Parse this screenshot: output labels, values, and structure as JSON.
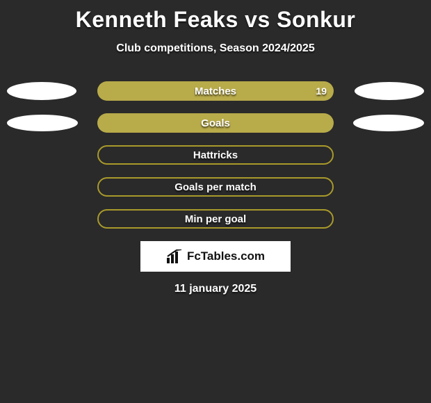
{
  "background_color": "#2a2a2a",
  "title": {
    "text": "Kenneth Feaks vs Sonkur",
    "color": "#ffffff",
    "fontsize": 32,
    "fontweight": 900
  },
  "subtitle": {
    "text": "Club competitions, Season 2024/2025",
    "color": "#ffffff",
    "fontsize": 16,
    "fontweight": 700
  },
  "pill_color_filled": "#b8ab4a",
  "pill_color_outline": "#a99a2a",
  "ellipse_color": "#ffffff",
  "stats": [
    {
      "label": "Matches",
      "filled": true,
      "value_right": "19",
      "left_ellipse": {
        "width": 100,
        "height": 26
      },
      "right_ellipse": {
        "width": 100,
        "height": 26
      }
    },
    {
      "label": "Goals",
      "filled": true,
      "value_right": null,
      "left_ellipse": {
        "width": 102,
        "height": 24
      },
      "right_ellipse": {
        "width": 102,
        "height": 24
      }
    },
    {
      "label": "Hattricks",
      "filled": false,
      "value_right": null,
      "left_ellipse": null,
      "right_ellipse": null
    },
    {
      "label": "Goals per match",
      "filled": false,
      "value_right": null,
      "left_ellipse": null,
      "right_ellipse": null
    },
    {
      "label": "Min per goal",
      "filled": false,
      "value_right": null,
      "left_ellipse": null,
      "right_ellipse": null
    }
  ],
  "logo_text": "FcTables.com",
  "date_text": "11 january 2025"
}
